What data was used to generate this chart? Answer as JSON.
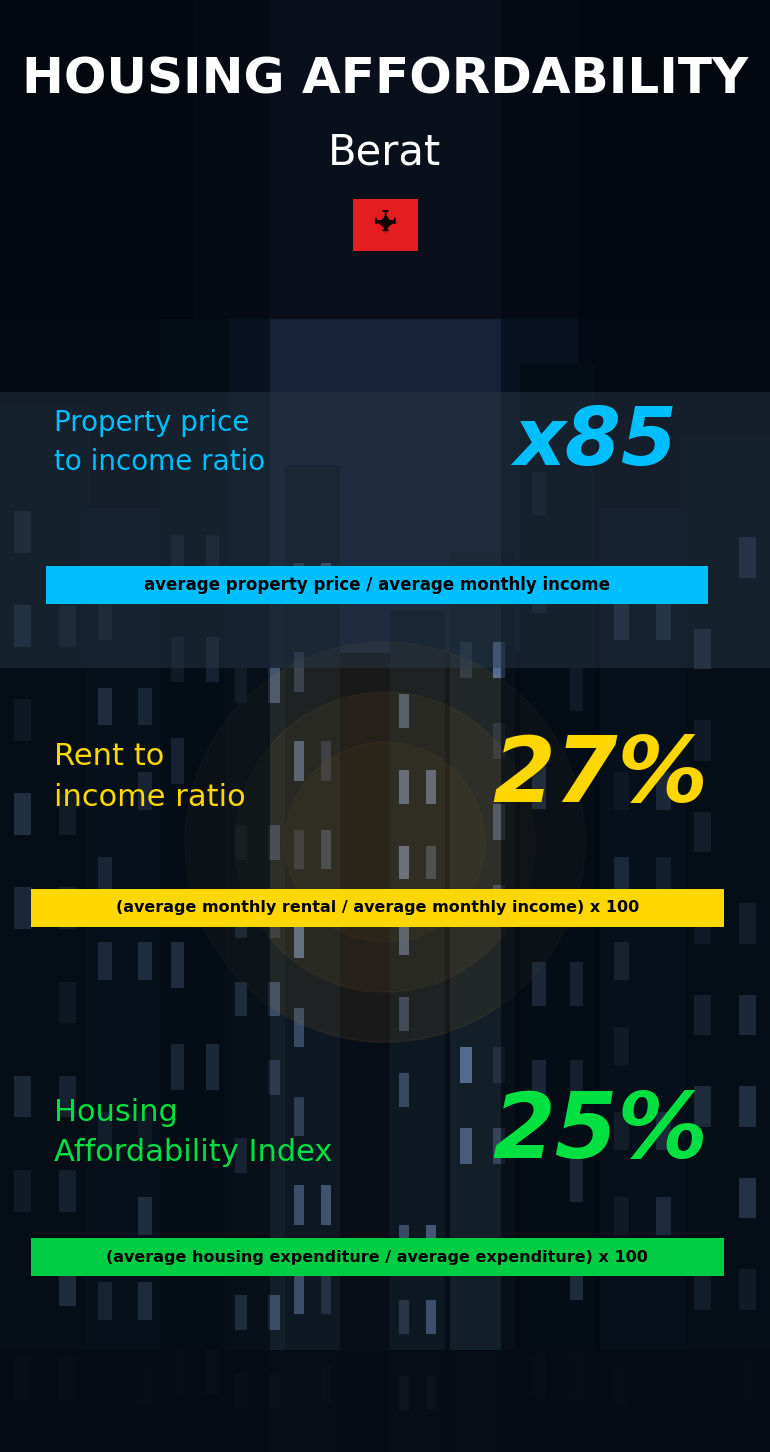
{
  "title_line1": "HOUSING AFFORDABILITY",
  "title_line2": "Berat",
  "bg_color": "#0d1b2a",
  "title_color": "#ffffff",
  "subtitle_color": "#ffffff",
  "section1_label": "Property price\nto income ratio",
  "section1_value": "x85",
  "section1_label_color": "#00bfff",
  "section1_value_color": "#00bfff",
  "section1_formula": "average property price / average monthly income",
  "section1_formula_bg": "#00bfff",
  "section1_formula_color": "#000000",
  "section2_label": "Rent to\nincome ratio",
  "section2_value": "27%",
  "section2_label_color": "#ffd700",
  "section2_value_color": "#ffd700",
  "section2_formula": "(average monthly rental / average monthly income) x 100",
  "section2_formula_bg": "#ffd700",
  "section2_formula_color": "#000000",
  "section3_label": "Housing\nAffordability Index",
  "section3_value": "25%",
  "section3_label_color": "#00e040",
  "section3_value_color": "#00e040",
  "section3_formula": "(average housing expenditure / average expenditure) x 100",
  "section3_formula_bg": "#00cc44",
  "section3_formula_color": "#000000",
  "flag_red": "#e41e20",
  "figwidth": 7.7,
  "figheight": 14.52
}
